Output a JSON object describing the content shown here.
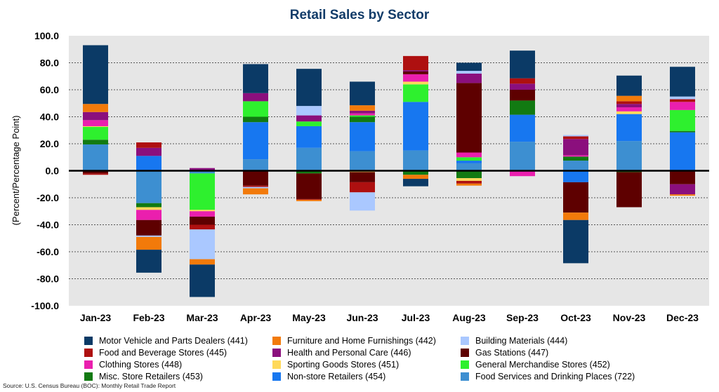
{
  "chart_data": {
    "type": "bar",
    "stacked": true,
    "title": "Retail Sales by Sector",
    "ylabel": "(Percent/Percentage Point)",
    "xlabel": "",
    "ylim": [
      -100,
      100
    ],
    "yticks": [
      -100,
      -80,
      -60,
      -40,
      -20,
      0,
      20,
      40,
      60,
      80,
      100
    ],
    "ytick_labels": [
      "-100.0",
      "-80.0",
      "-60.0",
      "-40.0",
      "-20.0",
      "0.0",
      "20.0",
      "40.0",
      "60.0",
      "80.0",
      "100.0"
    ],
    "grid": true,
    "legend": "bottom",
    "categories": [
      "Jan-23",
      "Feb-23",
      "Mar-23",
      "Apr-23",
      "May-23",
      "Jun-23",
      "Jul-23",
      "Aug-23",
      "Sep-23",
      "Oct-23",
      "Nov-23",
      "Dec-23"
    ],
    "series": [
      {
        "name": "Food Services and Drinking Places (722)",
        "color": "#3d8fd1",
        "values": [
          19.5,
          -24,
          -2,
          8.5,
          17,
          14.5,
          15,
          5.5,
          21.5,
          7.5,
          22,
          0.5
        ]
      },
      {
        "name": "Non-store Retailers (454)",
        "color": "#1777f0",
        "values": [
          0,
          11,
          0,
          27.5,
          16,
          21.5,
          36,
          2,
          20,
          -8.5,
          20,
          28
        ]
      },
      {
        "name": "Misc. Store Retailers (453)",
        "color": "#127a12",
        "values": [
          3.5,
          -3,
          0,
          4,
          -2,
          4,
          -3,
          -5.5,
          10.5,
          3,
          -1,
          1
        ]
      },
      {
        "name": "General Merchandise Stores (452)",
        "color": "#2ef02e",
        "values": [
          9.5,
          0,
          -27,
          11.5,
          3.5,
          1,
          13,
          2.5,
          0,
          0,
          0,
          15.5
        ]
      },
      {
        "name": "Sporting Goods Stores (451)",
        "color": "#ffd95a",
        "values": [
          0.5,
          -2,
          -1,
          0,
          0,
          -1,
          2,
          -2,
          0,
          0,
          2,
          0
        ]
      },
      {
        "name": "Clothing Stores (448)",
        "color": "#ea1fae",
        "values": [
          4.5,
          -7.5,
          -4,
          0,
          0,
          1.5,
          5.5,
          3.5,
          -4,
          1,
          3,
          6
        ]
      },
      {
        "name": "Gas Stations (447)",
        "color": "#5e0000",
        "values": [
          -2,
          -11.5,
          -6,
          -11,
          -19,
          -7.5,
          2,
          51.5,
          8,
          -22.5,
          -26,
          -10
        ]
      },
      {
        "name": "Health and Personal Care (446)",
        "color": "#8b0f7d",
        "values": [
          6,
          6,
          2,
          6,
          4.5,
          2,
          1,
          7,
          4.5,
          12,
          2.5,
          -7.5
        ]
      },
      {
        "name": "Food and Beverage Stores (445)",
        "color": "#ae1010",
        "values": [
          -1,
          4,
          -3.5,
          -1,
          -0.5,
          -7.5,
          10.5,
          -2,
          4,
          2,
          2,
          2
        ]
      },
      {
        "name": "Building Materials (444)",
        "color": "#aac8ff",
        "values": [
          0,
          -1,
          -22,
          -1,
          7,
          -13.5,
          0,
          2,
          0,
          1,
          0,
          2
        ]
      },
      {
        "name": "Furniture and Home Furnishings (442)",
        "color": "#f27a0a",
        "values": [
          6,
          -9.5,
          -4,
          -4.5,
          -1,
          4,
          -3,
          -1.5,
          0,
          -5.5,
          4,
          -1
        ]
      },
      {
        "name": "Motor Vehicle and Parts Dealers (441)",
        "color": "#0b3a66",
        "values": [
          43.5,
          -17,
          -24,
          21.5,
          27.5,
          17.5,
          -5.5,
          6,
          20.5,
          -32,
          15,
          22
        ]
      }
    ]
  },
  "legend_items": [
    {
      "name": "Motor Vehicle and Parts Dealers (441)",
      "color": "#0b3a66"
    },
    {
      "name": "Furniture and Home Furnishings (442)",
      "color": "#f27a0a"
    },
    {
      "name": "Building Materials (444)",
      "color": "#aac8ff"
    },
    {
      "name": "Food and Beverage Stores (445)",
      "color": "#ae1010"
    },
    {
      "name": "Health and Personal Care (446)",
      "color": "#8b0f7d"
    },
    {
      "name": "Gas Stations (447)",
      "color": "#5e0000"
    },
    {
      "name": "Clothing Stores (448)",
      "color": "#ea1fae"
    },
    {
      "name": "Sporting Goods Stores (451)",
      "color": "#ffd95a"
    },
    {
      "name": "General Merchandise Stores (452)",
      "color": "#2ef02e"
    },
    {
      "name": "Misc. Store Retailers (453)",
      "color": "#127a12"
    },
    {
      "name": "Non-store Retailers (454)",
      "color": "#1777f0"
    },
    {
      "name": "Food Services and Drinking Places (722)",
      "color": "#3d8fd1"
    }
  ],
  "source": "Source: U.S. Census Bureau (BOC): Monthly Retail Trade Report",
  "colors": {
    "title": "#123c69",
    "plot_bg": "#e6e6e6",
    "grid": "#555555",
    "zero_line": "#000000"
  }
}
